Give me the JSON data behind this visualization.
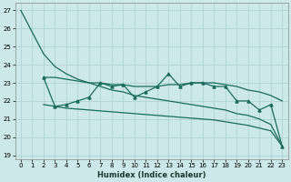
{
  "xlabel": "Humidex (Indice chaleur)",
  "bg_color": "#cce8e8",
  "grid_color": "#aacfcf",
  "line_color": "#1a6b5e",
  "xlim": [
    -0.5,
    23.5
  ],
  "ylim": [
    18.8,
    27.4
  ],
  "yticks": [
    19,
    20,
    21,
    22,
    23,
    24,
    25,
    26,
    27
  ],
  "xticks": [
    0,
    1,
    2,
    3,
    4,
    5,
    6,
    7,
    8,
    9,
    10,
    11,
    12,
    13,
    14,
    15,
    16,
    17,
    18,
    19,
    20,
    21,
    22,
    23
  ],
  "line_top_x": [
    0,
    1,
    2,
    3,
    4,
    5,
    6,
    7,
    8,
    9,
    10,
    11,
    12,
    13,
    14,
    15,
    16,
    17,
    18,
    19,
    20,
    21,
    22,
    23
  ],
  "line_top_y": [
    27.0,
    25.8,
    24.6,
    23.9,
    23.5,
    23.2,
    23.0,
    22.8,
    22.6,
    22.5,
    22.3,
    22.2,
    22.1,
    22.0,
    21.9,
    21.8,
    21.7,
    21.6,
    21.5,
    21.3,
    21.2,
    21.0,
    20.7,
    19.5
  ],
  "line_mid_x": [
    2,
    3,
    4,
    5,
    6,
    7,
    8,
    9,
    10,
    11,
    12,
    13,
    14,
    15,
    16,
    17,
    18,
    19,
    20,
    21,
    22,
    23
  ],
  "line_mid_y": [
    23.3,
    23.3,
    23.2,
    23.1,
    23.0,
    23.0,
    22.9,
    22.9,
    22.8,
    22.8,
    22.8,
    22.9,
    22.9,
    23.0,
    23.0,
    23.0,
    22.9,
    22.8,
    22.6,
    22.5,
    22.3,
    22.0
  ],
  "line_bot_x": [
    2,
    3,
    4,
    5,
    6,
    7,
    8,
    9,
    10,
    11,
    12,
    13,
    14,
    15,
    16,
    17,
    18,
    19,
    20,
    21,
    22,
    23
  ],
  "line_bot_y": [
    21.8,
    21.7,
    21.6,
    21.55,
    21.5,
    21.45,
    21.4,
    21.35,
    21.3,
    21.25,
    21.2,
    21.15,
    21.1,
    21.05,
    21.0,
    20.95,
    20.85,
    20.75,
    20.65,
    20.5,
    20.35,
    19.5
  ],
  "line_zz_x": [
    2,
    3,
    4,
    5,
    6,
    7,
    8,
    9,
    10,
    11,
    12,
    13,
    14,
    15,
    16,
    17,
    18,
    19,
    20,
    21,
    22,
    23
  ],
  "line_zz_y": [
    23.3,
    21.7,
    21.8,
    22.0,
    22.2,
    23.0,
    22.8,
    22.9,
    22.2,
    22.5,
    22.8,
    23.5,
    22.8,
    23.0,
    23.0,
    22.8,
    22.8,
    22.0,
    22.0,
    21.5,
    21.8,
    19.5
  ],
  "xlabel_fontsize": 6,
  "tick_fontsize": 5,
  "linewidth": 0.9,
  "markersize": 2.2
}
